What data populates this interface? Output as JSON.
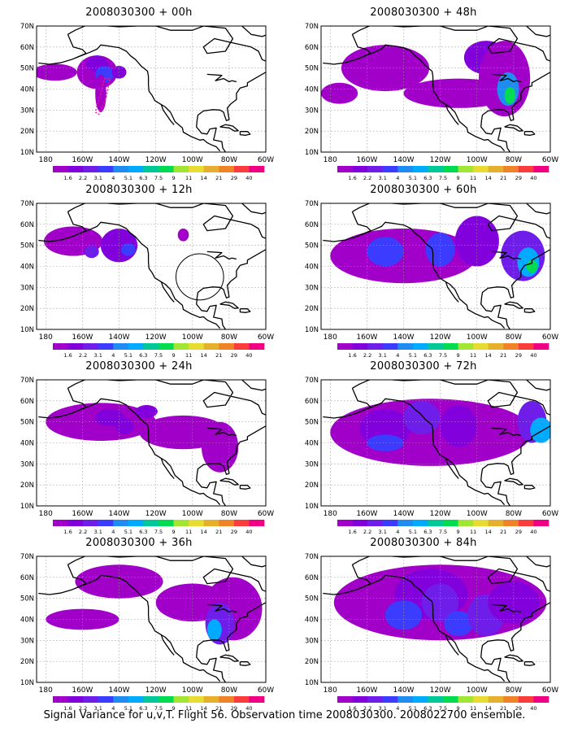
{
  "panels": [
    {
      "title": "2008030300 + 00h"
    },
    {
      "title": "2008030300 + 48h"
    },
    {
      "title": "2008030300 + 12h"
    },
    {
      "title": "2008030300 + 60h"
    },
    {
      "title": "2008030300 + 24h"
    },
    {
      "title": "2008030300 + 72h"
    },
    {
      "title": "2008030300 + 36h"
    },
    {
      "title": "2008030300 + 84h"
    }
  ],
  "lat_labels": [
    "10N",
    "20N",
    "30N",
    "40N",
    "50N",
    "60N",
    "70N"
  ],
  "lon_labels": [
    "180",
    "160W",
    "140W",
    "120W",
    "100W",
    "80W",
    "60W"
  ],
  "scale": {
    "labels": [
      "1.6",
      "2.2",
      "3.1",
      "4",
      "5.1",
      "6.3",
      "7.5",
      "9",
      "11",
      "14",
      "21",
      "29",
      "40"
    ],
    "colors": [
      "#a000c8",
      "#8200dc",
      "#6e1ee8",
      "#3c3cff",
      "#1e8cf0",
      "#00aaff",
      "#00c896",
      "#00dc50",
      "#a0e632",
      "#e6dc32",
      "#e6af2d",
      "#f08228",
      "#fa3c3c",
      "#f00082"
    ]
  },
  "caption": "Signal Variance for u,v,T. Flight 56. Observation time 2008030300. 2008022700 ensemble."
}
